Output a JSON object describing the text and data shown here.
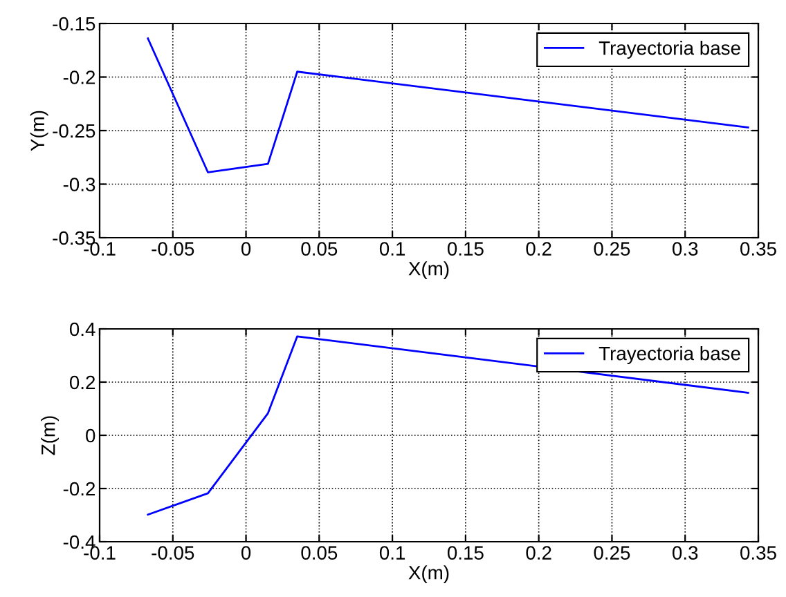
{
  "chart_data": [
    {
      "type": "line",
      "xlabel": "X(m)",
      "ylabel": "Y(m)",
      "x": [
        -0.067,
        -0.026,
        0.015,
        0.035,
        0.343
      ],
      "series": [
        {
          "name": "Trayectoria base",
          "color": "#0000ff",
          "values": [
            -0.164,
            -0.289,
            -0.281,
            -0.195,
            -0.247
          ]
        }
      ],
      "xlim": [
        -0.1,
        0.35
      ],
      "xticks": [
        -0.1,
        -0.05,
        0,
        0.05,
        0.1,
        0.15,
        0.2,
        0.25,
        0.3,
        0.35
      ],
      "ylim": [
        -0.35,
        -0.15
      ],
      "yticks": [
        -0.35,
        -0.3,
        -0.25,
        -0.2,
        -0.15
      ],
      "grid": true,
      "legend": "top right"
    },
    {
      "type": "line",
      "xlabel": "X(m)",
      "ylabel": "Z(m)",
      "x": [
        -0.067,
        -0.026,
        0.015,
        0.035,
        0.343
      ],
      "series": [
        {
          "name": "Trayectoria base",
          "color": "#0000ff",
          "values": [
            -0.298,
            -0.218,
            0.083,
            0.372,
            0.16
          ]
        }
      ],
      "xlim": [
        -0.1,
        0.35
      ],
      "xticks": [
        -0.1,
        -0.05,
        0,
        0.05,
        0.1,
        0.15,
        0.2,
        0.25,
        0.3,
        0.35
      ],
      "ylim": [
        -0.4,
        0.4
      ],
      "yticks": [
        -0.4,
        -0.2,
        0,
        0.2,
        0.4
      ],
      "grid": true,
      "legend": "top right"
    }
  ]
}
